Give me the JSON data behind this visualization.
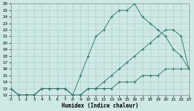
{
  "xlabel": "Humidex (Indice chaleur)",
  "background_color": "#cde8e5",
  "grid_color": "#b0d0ce",
  "line_color": "#2e7d6e",
  "xlim": [
    0,
    23
  ],
  "ylim": [
    12,
    26
  ],
  "xticks": [
    0,
    1,
    2,
    3,
    4,
    5,
    6,
    7,
    8,
    9,
    10,
    11,
    12,
    13,
    14,
    15,
    16,
    17,
    18,
    19,
    20,
    21,
    22,
    23
  ],
  "yticks": [
    12,
    13,
    14,
    15,
    16,
    17,
    18,
    19,
    20,
    21,
    22,
    23,
    24,
    25,
    26
  ],
  "line_min": {
    "x": [
      0,
      1,
      2,
      3,
      4,
      5,
      6,
      7,
      8,
      9,
      10,
      11,
      12,
      13,
      14,
      15,
      16,
      17,
      18,
      19,
      20,
      21,
      22,
      23
    ],
    "y": [
      13,
      12,
      12,
      12,
      13,
      13,
      13,
      13,
      12,
      12,
      13,
      13,
      13,
      13,
      14,
      14,
      14,
      15,
      15,
      15,
      16,
      16,
      16,
      16
    ]
  },
  "line_max": {
    "x": [
      0,
      1,
      2,
      3,
      4,
      5,
      6,
      7,
      8,
      9,
      10,
      11,
      12,
      13,
      14,
      15,
      16,
      17,
      18,
      19,
      20,
      21,
      22,
      23
    ],
    "y": [
      13,
      12,
      12,
      12,
      13,
      13,
      13,
      13,
      12,
      15,
      18,
      21,
      22,
      24,
      25,
      25,
      26,
      24,
      23,
      22,
      21,
      19,
      18,
      16
    ]
  },
  "line_avg": {
    "x": [
      0,
      1,
      2,
      3,
      4,
      5,
      6,
      7,
      8,
      9,
      10,
      11,
      12,
      13,
      14,
      15,
      16,
      17,
      18,
      19,
      20,
      21,
      22,
      23
    ],
    "y": [
      13,
      12,
      12,
      12,
      13,
      13,
      13,
      13,
      12,
      12,
      13,
      13,
      14,
      15,
      16,
      17,
      18,
      19,
      20,
      21,
      22,
      22,
      21,
      16
    ]
  }
}
